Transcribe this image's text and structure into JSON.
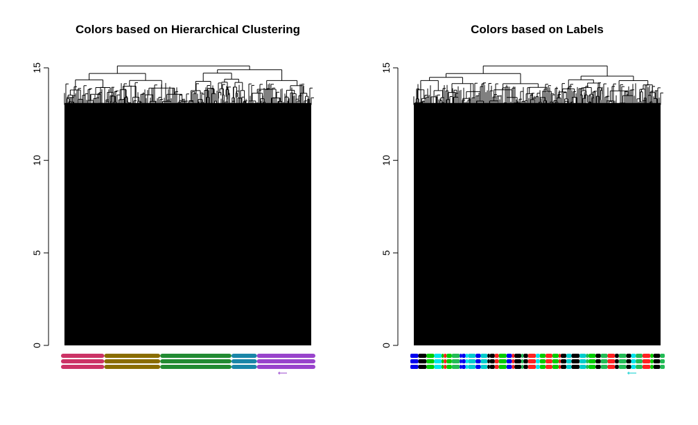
{
  "chart_data": [
    {
      "type": "dendrogram",
      "title": "Colors based on Hierarchical Clustering",
      "ylabel": "",
      "xlabel": "",
      "ylim": [
        0,
        15
      ],
      "yticks": [
        0,
        5,
        10,
        15
      ],
      "ytick_labels": [
        "0",
        "5",
        "10",
        "15"
      ],
      "top_merge_height": 15.1,
      "leaf_band_colors": [
        "#cc3366",
        "#8a6d00",
        "#228b33",
        "#1a86a8",
        "#9944cc"
      ],
      "leaf_band_fractions": [
        0.17,
        0.22,
        0.28,
        0.1,
        0.23
      ]
    },
    {
      "type": "dendrogram",
      "title": "Colors based on Labels",
      "ylabel": "",
      "xlabel": "",
      "ylim": [
        0,
        15
      ],
      "yticks": [
        0,
        5,
        10,
        15
      ],
      "ytick_labels": [
        "0",
        "5",
        "10",
        "15"
      ],
      "top_merge_height": 15.1,
      "leaf_label_colors": [
        "#ff2222",
        "#00cc00",
        "#0000ee",
        "#00cccc",
        "#000000",
        "#00e5ee",
        "#22bb55"
      ]
    }
  ]
}
